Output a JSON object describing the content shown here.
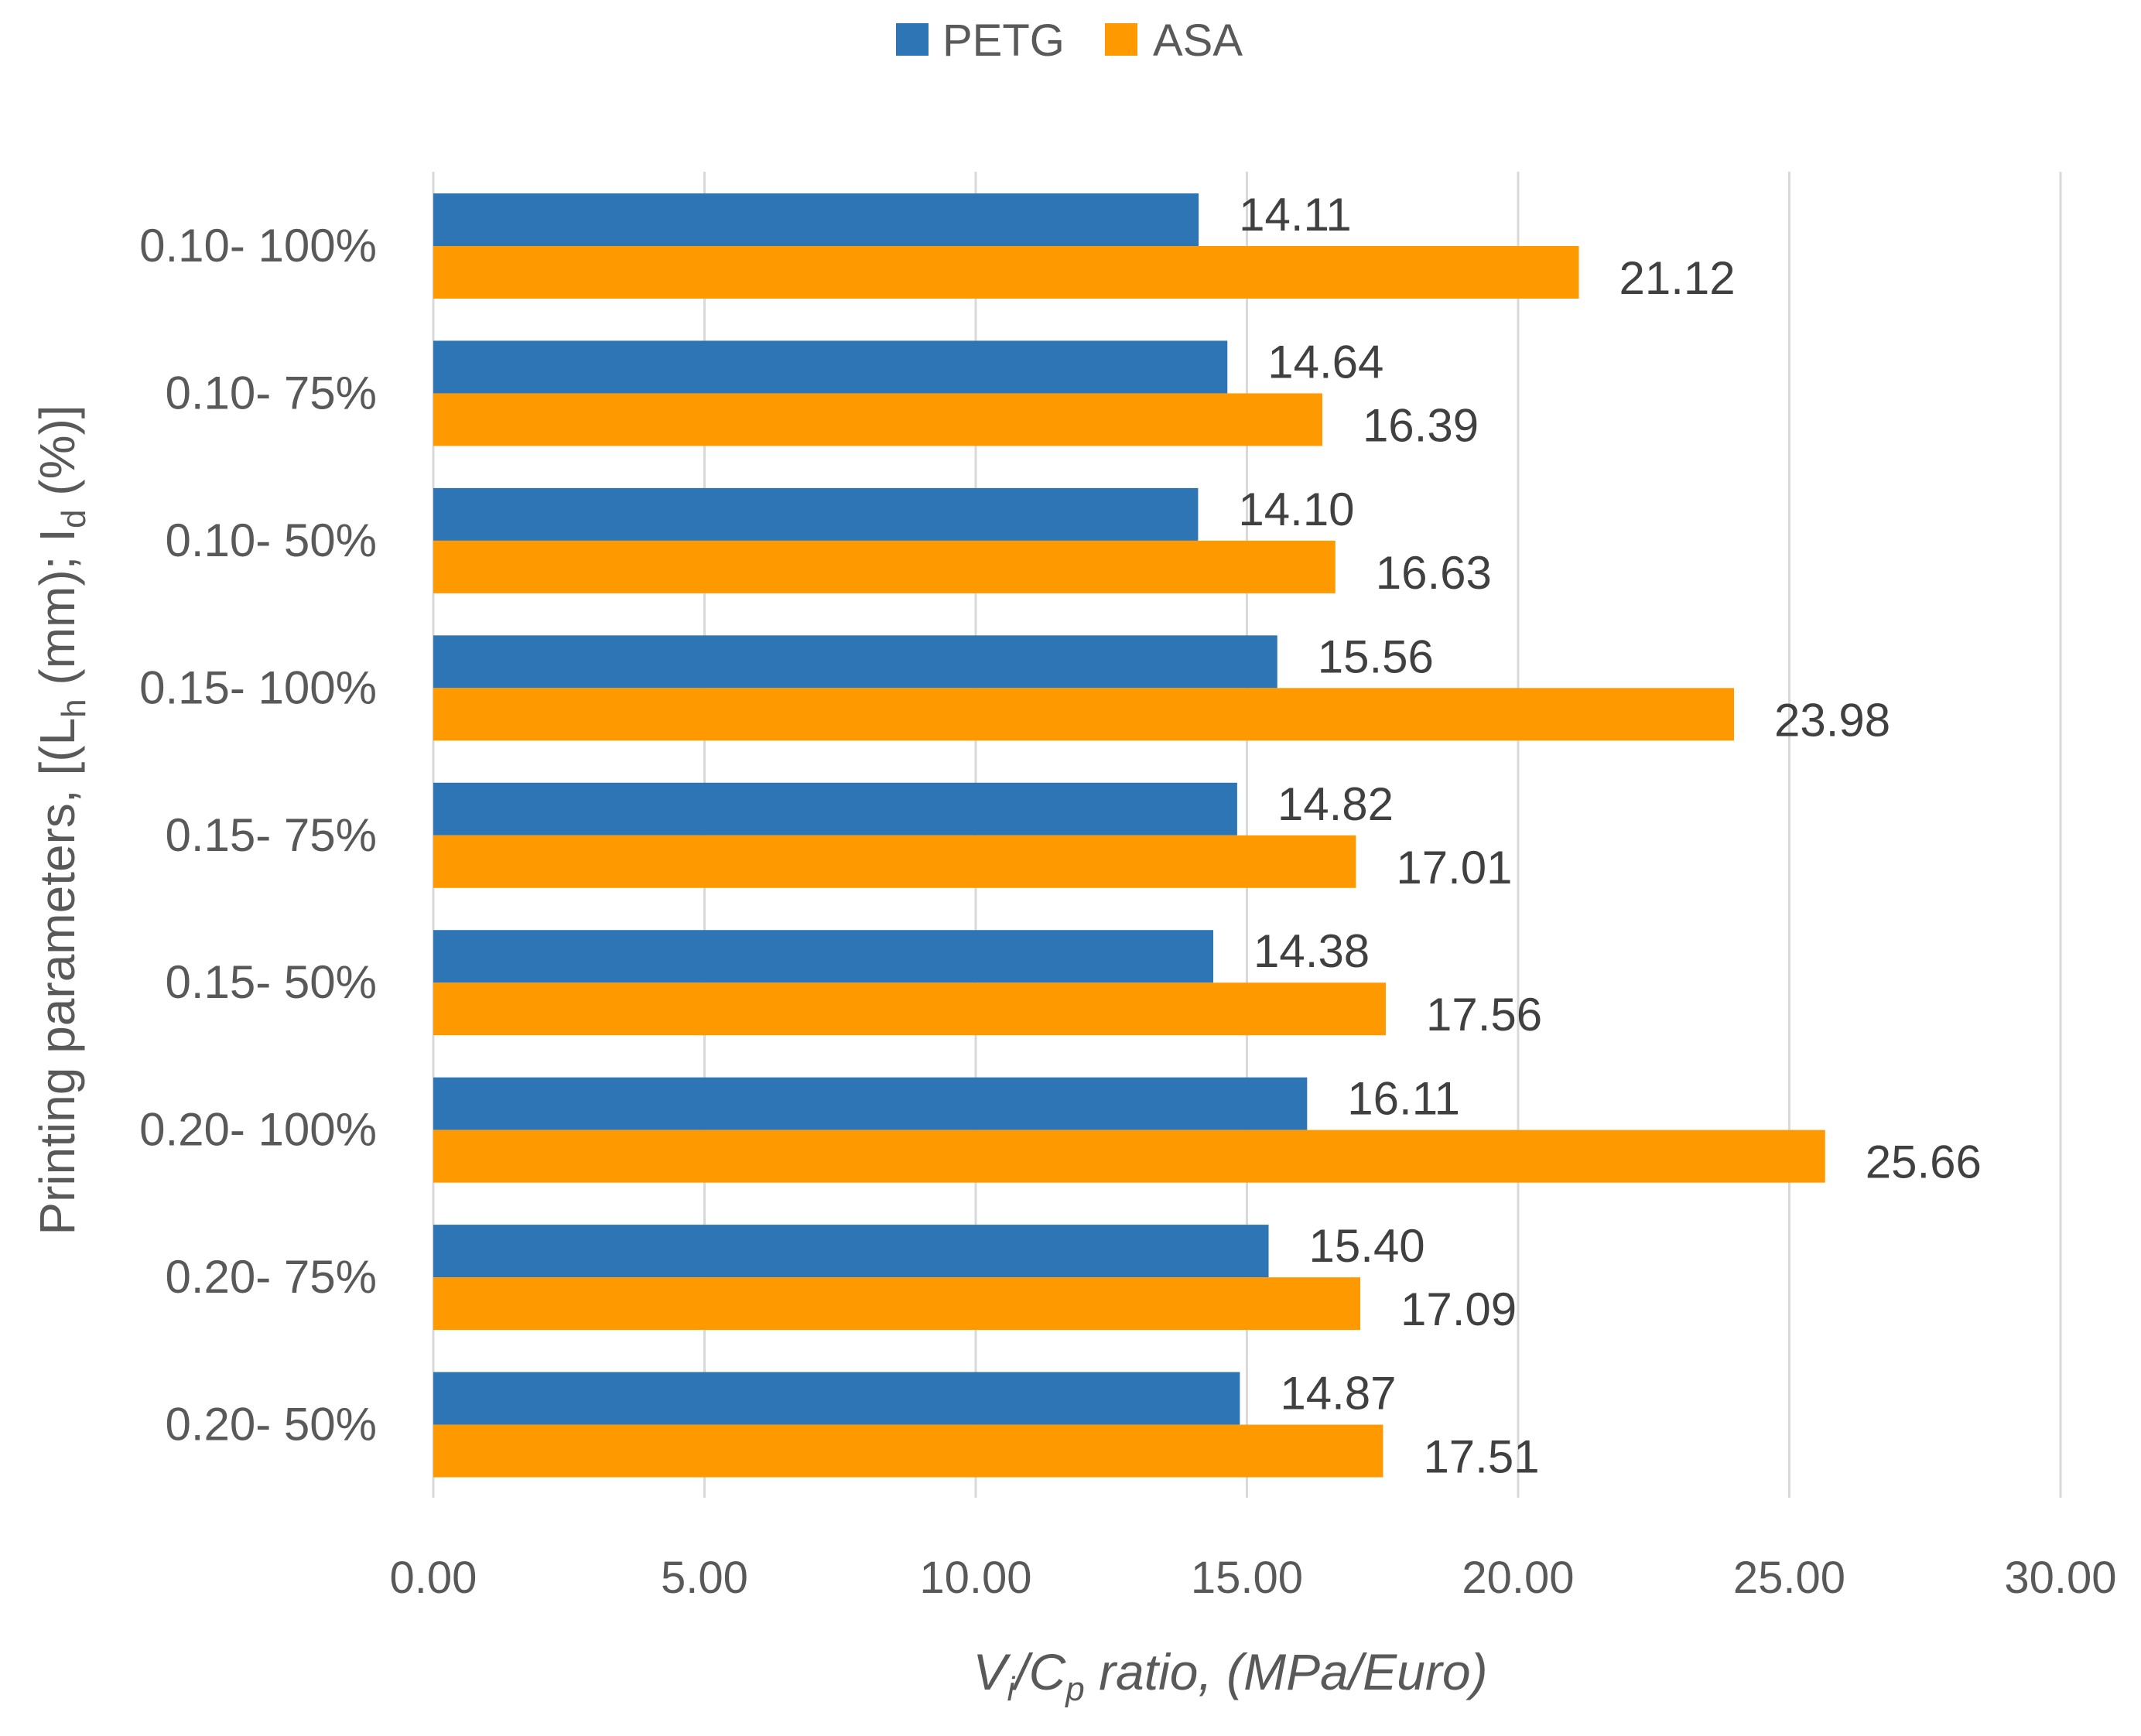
{
  "chart_data": {
    "type": "bar",
    "orientation": "horizontal",
    "categories": [
      "0.10- 100%",
      "0.10- 75%",
      "0.10- 50%",
      "0.15- 100%",
      "0.15- 75%",
      "0.15- 50%",
      "0.20- 100%",
      "0.20- 75%",
      "0.20- 50%"
    ],
    "series": [
      {
        "name": "PETG",
        "color": "#2E75B6",
        "values": [
          14.11,
          14.64,
          14.1,
          15.56,
          14.82,
          14.38,
          16.11,
          15.4,
          14.87
        ],
        "labels": [
          "14.11",
          "14.64",
          "14.10",
          "15.56",
          "14.82",
          "14.38",
          "16.11",
          "15.40",
          "14.87"
        ]
      },
      {
        "name": "ASA",
        "color": "#FF9900",
        "values": [
          21.12,
          16.39,
          16.63,
          23.98,
          17.01,
          17.56,
          25.66,
          17.09,
          17.51
        ],
        "labels": [
          "21.12",
          "16.39",
          "16.63",
          "23.98",
          "17.01",
          "17.56",
          "25.66",
          "17.09",
          "17.51"
        ]
      }
    ],
    "xlim": [
      0,
      30
    ],
    "x_ticks": [
      "0.00",
      "5.00",
      "10.00",
      "15.00",
      "20.00",
      "25.00",
      "30.00"
    ],
    "x_tick_values": [
      0,
      5,
      10,
      15,
      20,
      25,
      30
    ],
    "xlabel": {
      "v": "V",
      "i": "i",
      "slash": "/",
      "c": "C",
      "p": "p",
      "rest": " ratio, (MPa/Euro)"
    },
    "ylabel": {
      "a": "Printing parameters, [(L",
      "h": "h",
      "b": " (mm); I",
      "d": "d",
      "c": " (%)]"
    },
    "gridlines": "vertical",
    "legend_position": "top-center",
    "gridline_color": "#D9D9D9",
    "text_color": "#595959"
  }
}
